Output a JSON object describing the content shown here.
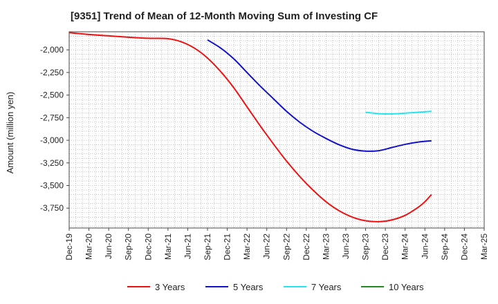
{
  "chart_data": {
    "type": "line",
    "title": "[9351]  Trend of Mean of 12-Month Moving Sum of Investing CF",
    "xlabel": "",
    "ylabel": "Amount (million yen)",
    "x_ticks": [
      "Dec-19",
      "Mar-20",
      "Jun-20",
      "Sep-20",
      "Dec-20",
      "Mar-21",
      "Jun-21",
      "Sep-21",
      "Dec-21",
      "Mar-22",
      "Jun-22",
      "Sep-22",
      "Dec-22",
      "Mar-23",
      "Jun-23",
      "Sep-23",
      "Dec-23",
      "Mar-24",
      "Jun-24",
      "Sep-24",
      "Dec-24",
      "Mar-25"
    ],
    "y_ticks": [
      -2000,
      -2250,
      -2500,
      -2750,
      -3000,
      -3250,
      -3500,
      -3750
    ],
    "y_tick_labels": [
      "-2,000",
      "-2,250",
      "-2,500",
      "-2,750",
      "-3,000",
      "-3,250",
      "-3,500",
      "-3,750"
    ],
    "ylim": [
      -3970,
      -1800
    ],
    "x_range_months": [
      0,
      63
    ],
    "series": [
      {
        "name": "3 Years",
        "color": "#ee1111",
        "points": [
          [
            0,
            -1810
          ],
          [
            3,
            -1830
          ],
          [
            6,
            -1845
          ],
          [
            9,
            -1860
          ],
          [
            12,
            -1872
          ],
          [
            15,
            -1876
          ],
          [
            17,
            -1910
          ],
          [
            19,
            -1980
          ],
          [
            21,
            -2090
          ],
          [
            23,
            -2240
          ],
          [
            25,
            -2420
          ],
          [
            27,
            -2630
          ],
          [
            29,
            -2840
          ],
          [
            31,
            -3040
          ],
          [
            33,
            -3230
          ],
          [
            35,
            -3400
          ],
          [
            37,
            -3550
          ],
          [
            39,
            -3680
          ],
          [
            41,
            -3780
          ],
          [
            43,
            -3850
          ],
          [
            45,
            -3890
          ],
          [
            47,
            -3900
          ],
          [
            49,
            -3880
          ],
          [
            51,
            -3830
          ],
          [
            53,
            -3740
          ],
          [
            54,
            -3680
          ],
          [
            55,
            -3600
          ]
        ]
      },
      {
        "name": "5 Years",
        "color": "#1111cc",
        "points": [
          [
            21,
            -1890
          ],
          [
            23,
            -1980
          ],
          [
            25,
            -2100
          ],
          [
            27,
            -2250
          ],
          [
            29,
            -2400
          ],
          [
            31,
            -2540
          ],
          [
            33,
            -2680
          ],
          [
            35,
            -2800
          ],
          [
            37,
            -2900
          ],
          [
            39,
            -2980
          ],
          [
            41,
            -3050
          ],
          [
            43,
            -3100
          ],
          [
            45,
            -3120
          ],
          [
            47,
            -3115
          ],
          [
            49,
            -3080
          ],
          [
            51,
            -3045
          ],
          [
            53,
            -3020
          ],
          [
            55,
            -3005
          ]
        ]
      },
      {
        "name": "7 Years",
        "color": "#22e5ee",
        "points": [
          [
            45,
            -2690
          ],
          [
            47,
            -2705
          ],
          [
            49,
            -2708
          ],
          [
            51,
            -2700
          ],
          [
            53,
            -2690
          ],
          [
            55,
            -2680
          ]
        ]
      },
      {
        "name": "10 Years",
        "color": "#228822",
        "points": []
      }
    ]
  }
}
